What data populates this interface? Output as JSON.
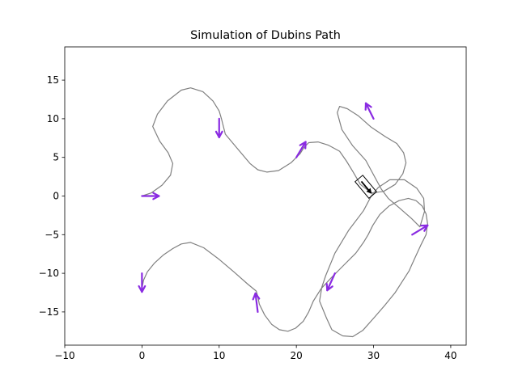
{
  "chart_data": {
    "type": "line",
    "title": "Simulation of Dubins Path",
    "xlabel": "",
    "ylabel": "",
    "xlim": [
      -10,
      42
    ],
    "ylim": [
      -19.3,
      19.3
    ],
    "xticks": [
      -10,
      0,
      10,
      20,
      30,
      40
    ],
    "yticks": [
      -15,
      -10,
      -5,
      0,
      5,
      10,
      15
    ],
    "grid": false,
    "colors": {
      "path": "#808080",
      "arrow": "#8a2be2",
      "vehicle": "#000000"
    },
    "path": {
      "name": "",
      "x": [
        0,
        1.2,
        2.6,
        3.7,
        4.0,
        3.4,
        2.3,
        1.4,
        2.0,
        3.3,
        5.1,
        6.3,
        7.9,
        9.2,
        10.0,
        10.3,
        10.8,
        12.4,
        14.0,
        15.0,
        16.2,
        17.7,
        19.3,
        20.5,
        21.0,
        21.6,
        22.8,
        24.1,
        25.6,
        26.5,
        27.3,
        28.3,
        29.7,
        31.3,
        32.8,
        33.8,
        34.2,
        33.9,
        33.0,
        31.5,
        29.7,
        28.0,
        26.6,
        25.6,
        25.3,
        25.9,
        27.3,
        29.0,
        29.7,
        30.4,
        31.0,
        31.9,
        33.3,
        34.9,
        36.0,
        36.6,
        36.5,
        35.6,
        34.0,
        32.1,
        30.6,
        29.7,
        28.7,
        26.8,
        25.0,
        23.8,
        23.3,
        23.0,
        23.9,
        24.6,
        26.0,
        27.3,
        28.6,
        30.2,
        31.5,
        32.8,
        33.7,
        34.6,
        35.0,
        35.5,
        36.1,
        36.8,
        37.0,
        36.8,
        36.3,
        35.5,
        34.5,
        33.3,
        32.0,
        30.8,
        29.9,
        29.3,
        28.7,
        27.7,
        26.1,
        24.5,
        23.2,
        22.2,
        21.6,
        20.9,
        19.9,
        18.9,
        17.8,
        16.8,
        15.9,
        15.2,
        15.0,
        14.8,
        13.7,
        12.0,
        10.0,
        8.0,
        6.3,
        5.1,
        4.0,
        2.8,
        1.6,
        0.7,
        0.2,
        0.0
      ],
      "y": [
        0,
        0.4,
        1.4,
        2.7,
        4.2,
        5.6,
        7.1,
        9.0,
        10.6,
        12.3,
        13.7,
        14.0,
        13.5,
        12.3,
        11.0,
        10.0,
        8.0,
        6.1,
        4.2,
        3.4,
        3.1,
        3.3,
        4.3,
        5.5,
        6.3,
        6.9,
        7.0,
        6.6,
        5.8,
        4.5,
        3.2,
        1.5,
        0.4,
        0.6,
        1.5,
        2.9,
        4.3,
        5.6,
        6.8,
        7.7,
        8.9,
        10.4,
        11.3,
        11.6,
        10.8,
        8.6,
        6.5,
        4.6,
        3.3,
        2.0,
        0.9,
        -0.3,
        -1.5,
        -2.9,
        -4.0,
        -2.0,
        -0.3,
        1.0,
        2.1,
        2.1,
        1.1,
        0.0,
        -1.9,
        -4.4,
        -7.4,
        -10.3,
        -11.8,
        -13.6,
        -15.8,
        -17.3,
        -18.1,
        -18.2,
        -17.4,
        -15.6,
        -14.1,
        -12.5,
        -11.1,
        -9.7,
        -8.8,
        -7.7,
        -6.4,
        -5.0,
        -3.6,
        -2.3,
        -1.3,
        -0.6,
        -0.3,
        -0.6,
        -1.3,
        -2.4,
        -3.8,
        -5.0,
        -6.0,
        -7.4,
        -9.0,
        -10.6,
        -12.0,
        -13.6,
        -15.0,
        -16.2,
        -17.1,
        -17.5,
        -17.3,
        -16.6,
        -15.4,
        -14.0,
        -13.0,
        -12.3,
        -11.4,
        -9.9,
        -8.2,
        -6.7,
        -6.0,
        -6.2,
        -6.8,
        -7.6,
        -8.7,
        -9.8,
        -10.9,
        -12.0
      ]
    },
    "waypoint_arrows": [
      {
        "x": 0,
        "y": 0,
        "dx": 2.2,
        "dy": 0
      },
      {
        "x": 10,
        "y": 10,
        "dx": 0,
        "dy": -2.4
      },
      {
        "x": 20,
        "y": 5,
        "dx": 1.2,
        "dy": 2.0
      },
      {
        "x": 30,
        "y": 10,
        "dx": -1.0,
        "dy": 2.0
      },
      {
        "x": 35,
        "y": -5,
        "dx": 2.0,
        "dy": 1.2
      },
      {
        "x": 25,
        "y": -10,
        "dx": -1.0,
        "dy": -2.2
      },
      {
        "x": 15,
        "y": -15,
        "dx": -0.3,
        "dy": 2.4
      },
      {
        "x": 0,
        "y": -10,
        "dx": 0,
        "dy": -2.4
      }
    ],
    "vehicle": {
      "x": 29.0,
      "y": 1.2,
      "heading_deg": -50,
      "length": 2.8,
      "width": 1.3
    }
  }
}
